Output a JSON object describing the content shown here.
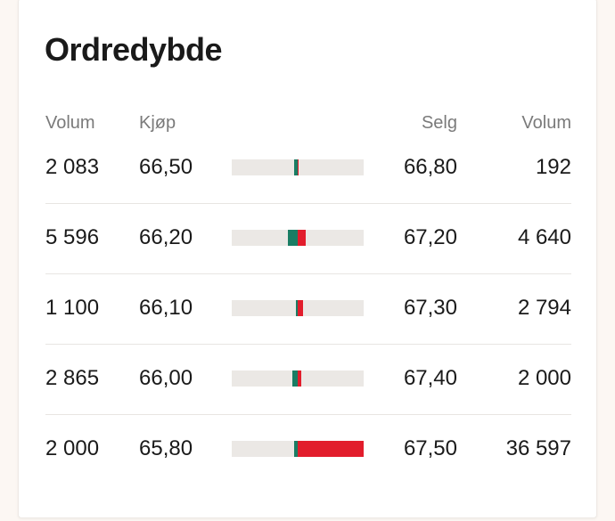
{
  "header": {
    "title": "Ordredybde"
  },
  "table": {
    "columns": [
      "Volum",
      "Kjøp",
      "Selg",
      "Volum"
    ],
    "rows": [
      {
        "buy_volume": {
          "value": 2083,
          "label": "2 083"
        },
        "buy_price": "66,50",
        "sell_price": "66,80",
        "sell_volume": 192
      },
      {
        "buy_volume": {
          "value": 5596,
          "label": "5 596"
        },
        "buy_price": "66,20",
        "sell_price": "67,20",
        "sell_volume": {
          "value": 4640,
          "label": "4 640"
        }
      },
      {
        "buy_volume": {
          "value": 1100,
          "label": "1 100"
        },
        "buy_price": "66,10",
        "sell_price": "67,30",
        "sell_volume": {
          "value": 2794,
          "label": "2 794"
        }
      },
      {
        "buy_volume": {
          "value": 2865,
          "label": "2 865"
        },
        "buy_price": "66,00",
        "sell_price": "67,40",
        "sell_volume": {
          "value": 2000,
          "label": "2 000"
        }
      },
      {
        "buy_volume": {
          "value": 2000,
          "label": "2 000"
        },
        "buy_price": "65,80",
        "sell_price": "67,50",
        "sell_volume": {
          "value": 36597,
          "label": "36 597"
        }
      }
    ],
    "buy_color": "#1a7d64",
    "sell_color": "#e21d2c"
  }
}
